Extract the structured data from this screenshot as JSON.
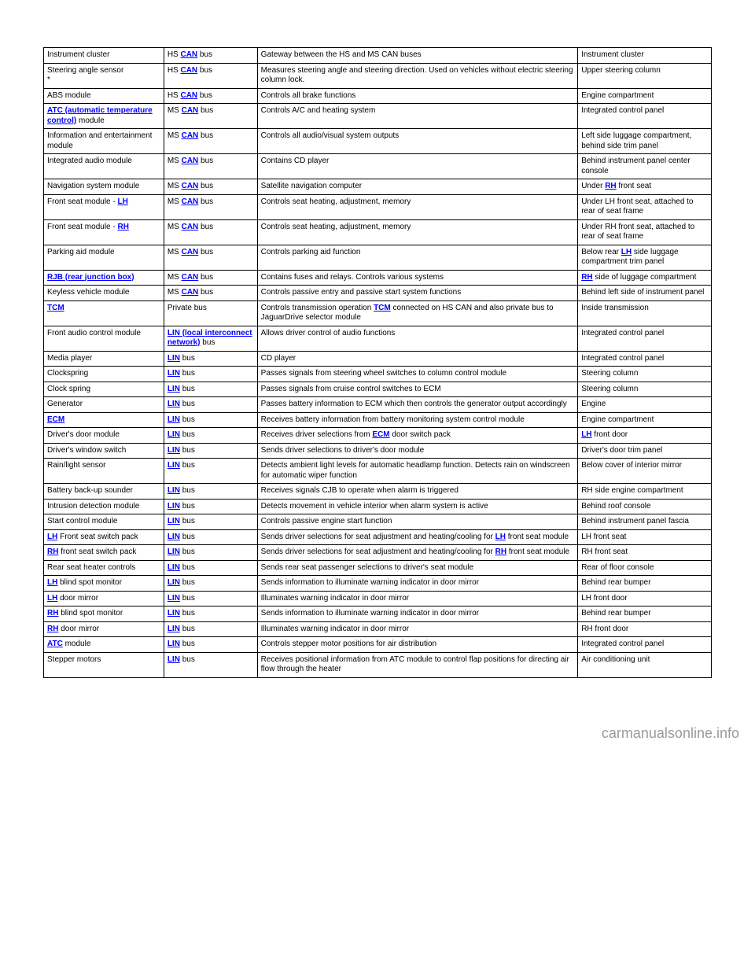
{
  "rows": [
    {
      "c1": [
        {
          "t": "Instrument cluster"
        }
      ],
      "c2": [
        {
          "t": "HS ",
          "link": false
        },
        {
          "t": "CAN",
          "link": true
        },
        {
          "t": " bus"
        }
      ],
      "c3": [
        {
          "t": "Gateway between the HS and MS CAN buses"
        }
      ],
      "c4": [
        {
          "t": "Instrument cluster"
        }
      ]
    },
    {
      "c1": [
        {
          "t": "Steering angle sensor",
          "br": true
        },
        {
          "t": "*"
        }
      ],
      "c2": [
        {
          "t": "HS ",
          "link": false
        },
        {
          "t": "CAN",
          "link": true
        },
        {
          "t": " bus"
        }
      ],
      "c3": [
        {
          "t": "Measures steering angle and steering direction. Used on vehicles without electric steering column lock."
        }
      ],
      "c4": [
        {
          "t": "Upper steering column"
        }
      ]
    },
    {
      "c1": [
        {
          "t": "ABS module"
        }
      ],
      "c2": [
        {
          "t": "HS ",
          "link": false
        },
        {
          "t": "CAN",
          "link": true
        },
        {
          "t": " bus"
        }
      ],
      "c3": [
        {
          "t": "Controls all brake functions"
        }
      ],
      "c4": [
        {
          "t": "Engine compartment"
        }
      ]
    },
    {
      "c1": [
        {
          "t": "ATC (automatic temperature control)",
          "link": true
        },
        {
          "t": " module",
          "link": false
        }
      ],
      "c2": [
        {
          "t": "MS ",
          "link": false
        },
        {
          "t": "CAN",
          "link": true
        },
        {
          "t": " bus"
        }
      ],
      "c3": [
        {
          "t": "Controls A/C and heating system"
        }
      ],
      "c4": [
        {
          "t": "Integrated control panel"
        }
      ]
    },
    {
      "c1": [
        {
          "t": "Information and entertainment module"
        }
      ],
      "c2": [
        {
          "t": "MS ",
          "link": false
        },
        {
          "t": "CAN",
          "link": true
        },
        {
          "t": " bus"
        }
      ],
      "c3": [
        {
          "t": "Controls all audio/visual system outputs"
        }
      ],
      "c4": [
        {
          "t": "Left side luggage compartment, behind side trim panel"
        }
      ]
    },
    {
      "c1": [
        {
          "t": "Integrated audio module"
        }
      ],
      "c2": [
        {
          "t": "MS ",
          "link": false
        },
        {
          "t": "CAN",
          "link": true
        },
        {
          "t": " bus"
        }
      ],
      "c3": [
        {
          "t": "Contains CD player"
        }
      ],
      "c4": [
        {
          "t": "Behind instrument panel center console"
        }
      ]
    },
    {
      "c1": [
        {
          "t": "Navigation system module"
        }
      ],
      "c2": [
        {
          "t": "MS ",
          "link": false
        },
        {
          "t": "CAN",
          "link": true
        },
        {
          "t": " bus"
        }
      ],
      "c3": [
        {
          "t": "Satellite navigation computer"
        }
      ],
      "c4": [
        {
          "t": "Under "
        },
        {
          "t": "RH",
          "link": true
        },
        {
          "t": " front seat"
        }
      ]
    },
    {
      "c1": [
        {
          "t": "Front seat module - "
        },
        {
          "t": "LH",
          "link": true
        }
      ],
      "c2": [
        {
          "t": "MS ",
          "link": false
        },
        {
          "t": "CAN",
          "link": true
        },
        {
          "t": " bus"
        }
      ],
      "c3": [
        {
          "t": "Controls seat heating, adjustment, memory"
        }
      ],
      "c4": [
        {
          "t": "Under LH front seat, attached to rear of seat frame"
        }
      ]
    },
    {
      "c1": [
        {
          "t": "Front seat module - "
        },
        {
          "t": "RH",
          "link": true
        }
      ],
      "c2": [
        {
          "t": "MS ",
          "link": false
        },
        {
          "t": "CAN",
          "link": true
        },
        {
          "t": " bus"
        }
      ],
      "c3": [
        {
          "t": "Controls seat heating, adjustment, memory"
        }
      ],
      "c4": [
        {
          "t": "Under RH front seat, attached to rear of seat frame"
        }
      ]
    },
    {
      "c1": [
        {
          "t": "Parking aid module"
        }
      ],
      "c2": [
        {
          "t": "MS ",
          "link": false
        },
        {
          "t": "CAN",
          "link": true
        },
        {
          "t": " bus"
        }
      ],
      "c3": [
        {
          "t": "Controls parking aid function"
        }
      ],
      "c4": [
        {
          "t": "Below rear "
        },
        {
          "t": "LH",
          "link": true
        },
        {
          "t": " side luggage compartment trim panel"
        }
      ]
    },
    {
      "c1": [
        {
          "t": "RJB (rear junction box)",
          "link": true
        }
      ],
      "c2": [
        {
          "t": "MS ",
          "link": false
        },
        {
          "t": "CAN",
          "link": true
        },
        {
          "t": " bus"
        }
      ],
      "c3": [
        {
          "t": "Contains fuses and relays. Controls various systems"
        }
      ],
      "c4": [
        {
          "t": "RH",
          "link": true
        },
        {
          "t": " side of luggage compartment",
          "link": false
        }
      ]
    },
    {
      "c1": [
        {
          "t": "Keyless vehicle module"
        }
      ],
      "c2": [
        {
          "t": "MS ",
          "link": false
        },
        {
          "t": "CAN",
          "link": true
        },
        {
          "t": " bus"
        }
      ],
      "c3": [
        {
          "t": "Controls passive entry and passive start system functions"
        }
      ],
      "c4": [
        {
          "t": "Behind left side of instrument panel"
        }
      ]
    },
    {
      "c1": [
        {
          "t": "TCM",
          "link": true
        }
      ],
      "c2": [
        {
          "t": "Private bus"
        }
      ],
      "c3": [
        {
          "t": "Controls transmission operation "
        },
        {
          "t": "TCM",
          "link": true
        },
        {
          "t": " connected on HS CAN and also private bus to JaguarDrive selector module"
        }
      ],
      "c4": [
        {
          "t": "Inside transmission"
        }
      ]
    },
    {
      "c1": [
        {
          "t": "Front audio control module"
        }
      ],
      "c2": [
        {
          "t": "LIN (local interconnect network)",
          "link": true
        },
        {
          "t": " bus"
        }
      ],
      "c3": [
        {
          "t": "Allows driver control of audio functions"
        }
      ],
      "c4": [
        {
          "t": "Integrated control panel"
        }
      ]
    },
    {
      "c1": [
        {
          "t": "Media player"
        }
      ],
      "c2": [
        {
          "t": "LIN",
          "link": true
        },
        {
          "t": " bus"
        }
      ],
      "c3": [
        {
          "t": "CD player"
        }
      ],
      "c4": [
        {
          "t": "Integrated control panel"
        }
      ]
    },
    {
      "c1": [
        {
          "t": "Clockspring"
        }
      ],
      "c2": [
        {
          "t": "LIN",
          "link": true
        },
        {
          "t": " bus"
        }
      ],
      "c3": [
        {
          "t": "Passes signals from steering wheel switches to column control module"
        }
      ],
      "c4": [
        {
          "t": "Steering column"
        }
      ]
    },
    {
      "c1": [
        {
          "t": "Clock spring"
        }
      ],
      "c2": [
        {
          "t": "LIN",
          "link": true
        },
        {
          "t": " bus"
        }
      ],
      "c3": [
        {
          "t": "Passes signals from cruise control switches to ECM"
        }
      ],
      "c4": [
        {
          "t": "Steering column"
        }
      ]
    },
    {
      "c1": [
        {
          "t": "Generator"
        }
      ],
      "c2": [
        {
          "t": "LIN",
          "link": true
        },
        {
          "t": " bus"
        }
      ],
      "c3": [
        {
          "t": "Passes battery information to ECM which then controls the generator output accordingly"
        }
      ],
      "c4": [
        {
          "t": "Engine"
        }
      ]
    },
    {
      "c1": [
        {
          "t": "ECM",
          "link": true
        }
      ],
      "c2": [
        {
          "t": "LIN",
          "link": true
        },
        {
          "t": " bus"
        }
      ],
      "c3": [
        {
          "t": "Receives battery information from battery monitoring system control module"
        }
      ],
      "c4": [
        {
          "t": "Engine compartment"
        }
      ]
    },
    {
      "c1": [
        {
          "t": "Driver's door module"
        }
      ],
      "c2": [
        {
          "t": "LIN",
          "link": true
        },
        {
          "t": " bus"
        }
      ],
      "c3": [
        {
          "t": "Receives driver selections from "
        },
        {
          "t": "ECM",
          "link": true
        },
        {
          "t": " door switch pack"
        }
      ],
      "c4": [
        {
          "t": "LH",
          "link": true
        },
        {
          "t": " front door"
        }
      ]
    },
    {
      "c1": [
        {
          "t": "Driver's window switch"
        }
      ],
      "c2": [
        {
          "t": "LIN",
          "link": true
        },
        {
          "t": " bus"
        }
      ],
      "c3": [
        {
          "t": "Sends driver selections to driver's door module"
        }
      ],
      "c4": [
        {
          "t": "Driver's door trim panel"
        }
      ]
    },
    {
      "c1": [
        {
          "t": "Rain/light sensor"
        }
      ],
      "c2": [
        {
          "t": "LIN",
          "link": true
        },
        {
          "t": " bus"
        }
      ],
      "c3": [
        {
          "t": "Detects ambient light levels for automatic headlamp function. Detects rain on windscreen for automatic wiper function"
        }
      ],
      "c4": [
        {
          "t": "Below cover of interior mirror"
        }
      ]
    },
    {
      "c1": [
        {
          "t": "Battery back-up sounder"
        }
      ],
      "c2": [
        {
          "t": "LIN",
          "link": true
        },
        {
          "t": " bus"
        }
      ],
      "c3": [
        {
          "t": "Receives signals CJB to operate when alarm is triggered"
        }
      ],
      "c4": [
        {
          "t": "RH side engine compartment"
        }
      ]
    },
    {
      "c1": [
        {
          "t": "Intrusion detection module"
        }
      ],
      "c2": [
        {
          "t": "LIN",
          "link": true
        },
        {
          "t": " bus"
        }
      ],
      "c3": [
        {
          "t": "Detects movement in vehicle interior when alarm system is active"
        }
      ],
      "c4": [
        {
          "t": "Behind roof console"
        }
      ]
    },
    {
      "c1": [
        {
          "t": "Start control module"
        }
      ],
      "c2": [
        {
          "t": "LIN",
          "link": true
        },
        {
          "t": " bus"
        }
      ],
      "c3": [
        {
          "t": "Controls passive engine start function"
        }
      ],
      "c4": [
        {
          "t": "Behind instrument panel fascia"
        }
      ]
    },
    {
      "c1": [
        {
          "t": "LH",
          "link": true
        },
        {
          "t": " Front seat switch pack"
        }
      ],
      "c2": [
        {
          "t": "LIN",
          "link": true
        },
        {
          "t": " bus"
        }
      ],
      "c3": [
        {
          "t": "Sends driver selections for seat adjustment and heating/cooling for "
        },
        {
          "t": "LH",
          "link": true
        },
        {
          "t": " front seat module"
        }
      ],
      "c4": [
        {
          "t": "LH front seat"
        }
      ]
    },
    {
      "c1": [
        {
          "t": "RH",
          "link": true
        },
        {
          "t": " front seat switch pack"
        }
      ],
      "c2": [
        {
          "t": "LIN",
          "link": true
        },
        {
          "t": " bus"
        }
      ],
      "c3": [
        {
          "t": "Sends driver selections for seat adjustment and heating/cooling for "
        },
        {
          "t": "RH",
          "link": true
        },
        {
          "t": " front seat module"
        }
      ],
      "c4": [
        {
          "t": "RH front seat"
        }
      ]
    },
    {
      "c1": [
        {
          "t": "Rear seat heater controls"
        }
      ],
      "c2": [
        {
          "t": "LIN",
          "link": true
        },
        {
          "t": " bus"
        }
      ],
      "c3": [
        {
          "t": "Sends rear seat passenger selections to driver's seat module"
        }
      ],
      "c4": [
        {
          "t": "Rear of floor console"
        }
      ]
    },
    {
      "c1": [
        {
          "t": "LH",
          "link": true
        },
        {
          "t": " blind spot monitor"
        }
      ],
      "c2": [
        {
          "t": "LIN",
          "link": true
        },
        {
          "t": " bus"
        }
      ],
      "c3": [
        {
          "t": "Sends information to illuminate warning indicator in door mirror"
        }
      ],
      "c4": [
        {
          "t": "Behind rear bumper"
        }
      ]
    },
    {
      "c1": [
        {
          "t": "LH",
          "link": true
        },
        {
          "t": " door mirror"
        }
      ],
      "c2": [
        {
          "t": "LIN",
          "link": true
        },
        {
          "t": " bus"
        }
      ],
      "c3": [
        {
          "t": "Illuminates warning indicator in door mirror"
        }
      ],
      "c4": [
        {
          "t": "LH front door"
        }
      ]
    },
    {
      "c1": [
        {
          "t": "RH",
          "link": true
        },
        {
          "t": " blind spot monitor"
        }
      ],
      "c2": [
        {
          "t": "LIN",
          "link": true
        },
        {
          "t": " bus"
        }
      ],
      "c3": [
        {
          "t": "Sends information to illuminate warning indicator in door mirror"
        }
      ],
      "c4": [
        {
          "t": "Behind rear bumper"
        }
      ]
    },
    {
      "c1": [
        {
          "t": "RH",
          "link": true
        },
        {
          "t": " door mirror"
        }
      ],
      "c2": [
        {
          "t": "LIN",
          "link": true
        },
        {
          "t": " bus"
        }
      ],
      "c3": [
        {
          "t": "Illuminates warning indicator in door mirror"
        }
      ],
      "c4": [
        {
          "t": "RH front door"
        }
      ]
    },
    {
      "c1": [
        {
          "t": "ATC",
          "link": true
        },
        {
          "t": " module"
        }
      ],
      "c2": [
        {
          "t": "LIN",
          "link": true
        },
        {
          "t": " bus"
        }
      ],
      "c3": [
        {
          "t": "Controls stepper motor positions for air distribution"
        }
      ],
      "c4": [
        {
          "t": "Integrated control panel"
        }
      ]
    },
    {
      "c1": [
        {
          "t": "Stepper motors"
        }
      ],
      "c2": [
        {
          "t": "LIN",
          "link": true
        },
        {
          "t": " bus"
        }
      ],
      "c3": [
        {
          "t": "Receives positional information from ATC module to control flap positions for directing air flow through the heater"
        }
      ],
      "c4": [
        {
          "t": "Air conditioning unit"
        }
      ]
    }
  ],
  "footer": "carmanualsonline.info"
}
